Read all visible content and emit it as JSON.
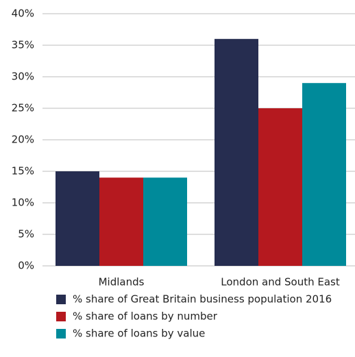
{
  "chart_data": {
    "type": "bar",
    "categories": [
      "Midlands",
      "London and South East"
    ],
    "series": [
      {
        "name": "% share of Great Britain business population 2016",
        "color": "#262d50",
        "values": [
          15,
          36
        ]
      },
      {
        "name": "% share of loans by number",
        "color": "#b5191f",
        "values": [
          14,
          25
        ]
      },
      {
        "name": "% share of loans by value",
        "color": "#008a9a",
        "values": [
          14,
          29
        ]
      }
    ],
    "ylim": [
      0,
      40
    ],
    "yticks": [
      {
        "value": 0,
        "label": "0%"
      },
      {
        "value": 5,
        "label": "5%"
      },
      {
        "value": 10,
        "label": "10%"
      },
      {
        "value": 15,
        "label": "15%"
      },
      {
        "value": 20,
        "label": "20%"
      },
      {
        "value": 25,
        "label": "25%"
      },
      {
        "value": 30,
        "label": "30%"
      },
      {
        "value": 35,
        "label": "35%"
      },
      {
        "value": 40,
        "label": "40%"
      }
    ],
    "grid": true,
    "legend": "bottom"
  }
}
